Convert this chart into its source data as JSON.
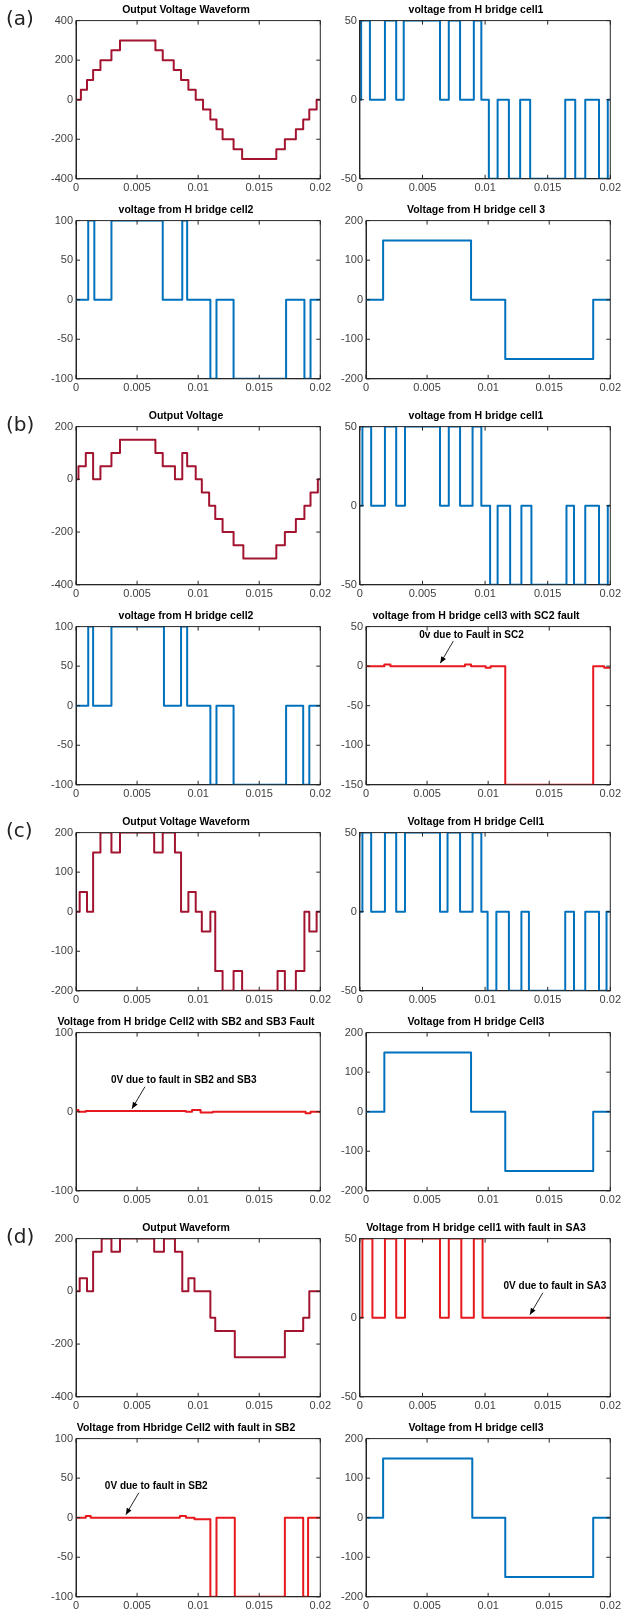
{
  "chart_data": [
    {
      "type": "step",
      "title": "Output Voltage Waveform",
      "annotations": [
        "(a)"
      ],
      "color": "#a2142f",
      "x": [
        0,
        0.0004,
        0.0009,
        0.0014,
        0.002,
        0.0029,
        0.0036,
        0.0065,
        0.0071,
        0.008,
        0.0086,
        0.0092,
        0.0098,
        0.0104,
        0.011,
        0.0115,
        0.012,
        0.0129,
        0.0136,
        0.0164,
        0.0171,
        0.018,
        0.0186,
        0.0191,
        0.0197,
        0.02
      ],
      "values": [
        0,
        50,
        100,
        150,
        200,
        250,
        300,
        250,
        200,
        150,
        100,
        50,
        0,
        -50,
        -100,
        -150,
        -200,
        -250,
        -300,
        -250,
        -200,
        -150,
        -100,
        -50,
        0,
        0
      ],
      "xlim": [
        0,
        0.02
      ],
      "xticks": [
        0,
        0.005,
        0.01,
        0.015,
        0.02
      ],
      "ylim": [
        -400,
        400
      ],
      "yticks": [
        -400,
        -200,
        0,
        200,
        400
      ]
    },
    {
      "type": "step",
      "title": "voltage from H bridge cell1",
      "color": "#0072bd",
      "x": [
        0,
        0.0001,
        0.0008,
        0.002,
        0.0029,
        0.0035,
        0.0064,
        0.0071,
        0.008,
        0.0091,
        0.0097,
        0.0103,
        0.011,
        0.0119,
        0.0128,
        0.0136,
        0.0164,
        0.0172,
        0.018,
        0.0191,
        0.0198,
        0.02
      ],
      "values": [
        0,
        50,
        0,
        50,
        0,
        50,
        0,
        50,
        0,
        50,
        0,
        -50,
        0,
        -50,
        0,
        -50,
        0,
        -50,
        0,
        -50,
        0,
        0
      ],
      "xlim": [
        0,
        0.02
      ],
      "xticks": [
        0,
        0.005,
        0.01,
        0.015,
        0.02
      ],
      "ylim": [
        -50,
        50
      ],
      "yticks": [
        -50,
        0,
        50
      ]
    },
    {
      "type": "step",
      "title": "voltage from H bridge cell2",
      "color": "#0072bd",
      "x": [
        0,
        0.001,
        0.0015,
        0.0029,
        0.0071,
        0.0087,
        0.0091,
        0.011,
        0.0115,
        0.0129,
        0.0172,
        0.0187,
        0.0192,
        0.02
      ],
      "values": [
        0,
        100,
        0,
        100,
        0,
        100,
        0,
        -100,
        0,
        -100,
        0,
        -100,
        0,
        0
      ],
      "xlim": [
        0,
        0.02
      ],
      "xticks": [
        0,
        0.005,
        0.01,
        0.015,
        0.02
      ],
      "ylim": [
        -100,
        100
      ],
      "yticks": [
        -100,
        -50,
        0,
        50,
        100
      ]
    },
    {
      "type": "step",
      "title": "Voltage from H bridge cell 3",
      "color": "#0072bd",
      "x": [
        0,
        0.0014,
        0.0086,
        0.0114,
        0.0186,
        0.02
      ],
      "values": [
        0,
        150,
        0,
        -150,
        0,
        0
      ],
      "xlim": [
        0,
        0.02
      ],
      "xticks": [
        0,
        0.005,
        0.01,
        0.015,
        0.02
      ],
      "ylim": [
        -200,
        200
      ],
      "yticks": [
        -200,
        -100,
        0,
        100,
        200
      ]
    },
    {
      "type": "step",
      "title": "Output Voltage",
      "annotations": [
        "(b)"
      ],
      "color": "#a2142f",
      "x": [
        0,
        0.0002,
        0.0008,
        0.0014,
        0.002,
        0.0029,
        0.0036,
        0.0065,
        0.0071,
        0.0081,
        0.0087,
        0.0091,
        0.0098,
        0.0103,
        0.0109,
        0.0114,
        0.012,
        0.0129,
        0.0137,
        0.0164,
        0.0171,
        0.018,
        0.0187,
        0.0192,
        0.0198,
        0.02
      ],
      "values": [
        0,
        50,
        100,
        0,
        50,
        100,
        150,
        100,
        50,
        0,
        100,
        50,
        0,
        -50,
        -100,
        -150,
        -200,
        -250,
        -300,
        -250,
        -200,
        -150,
        -100,
        -50,
        0,
        0
      ],
      "xlim": [
        0,
        0.02
      ],
      "xticks": [
        0,
        0.005,
        0.01,
        0.015,
        0.02
      ],
      "ylim": [
        -400,
        200
      ],
      "yticks": [
        -400,
        -200,
        0,
        200
      ]
    },
    {
      "type": "step",
      "title": "voltage from H bridge cell1",
      "color": "#0072bd",
      "x": [
        0,
        0.0002,
        0.0009,
        0.002,
        0.0029,
        0.0036,
        0.0064,
        0.0071,
        0.008,
        0.009,
        0.0097,
        0.0104,
        0.011,
        0.012,
        0.0129,
        0.0137,
        0.0165,
        0.0171,
        0.018,
        0.0191,
        0.0198,
        0.02
      ],
      "values": [
        0,
        50,
        0,
        50,
        0,
        50,
        0,
        50,
        0,
        50,
        0,
        -50,
        0,
        -50,
        0,
        -50,
        0,
        -50,
        0,
        -50,
        0,
        0
      ],
      "xlim": [
        0,
        0.02
      ],
      "xticks": [
        0,
        0.005,
        0.01,
        0.015,
        0.02
      ],
      "ylim": [
        -50,
        50
      ],
      "yticks": [
        -50,
        0,
        50
      ]
    },
    {
      "type": "step",
      "title": "voltage from H bridge cell2",
      "color": "#0072bd",
      "x": [
        0,
        0.001,
        0.0014,
        0.0029,
        0.0072,
        0.0086,
        0.0091,
        0.011,
        0.0115,
        0.0129,
        0.0172,
        0.0186,
        0.0191,
        0.02
      ],
      "values": [
        0,
        100,
        0,
        100,
        0,
        100,
        0,
        -100,
        0,
        -100,
        0,
        -100,
        0,
        0
      ],
      "xlim": [
        0,
        0.02
      ],
      "xticks": [
        0,
        0.005,
        0.01,
        0.015,
        0.02
      ],
      "ylim": [
        -100,
        100
      ],
      "yticks": [
        -100,
        -50,
        0,
        50,
        100
      ]
    },
    {
      "type": "step",
      "title": "voltage from H bridge cell3 with SC2 fault",
      "color": "#e8191d",
      "x": [
        0,
        0.0015,
        0.002,
        0.0081,
        0.0086,
        0.0098,
        0.0102,
        0.0114,
        0.0186,
        0.0195,
        0.02
      ],
      "values": [
        0,
        2,
        0,
        2,
        0,
        -2,
        0,
        -150,
        0,
        -2,
        -2
      ],
      "xlim": [
        0,
        0.02
      ],
      "xticks": [
        0,
        0.005,
        0.01,
        0.015,
        0.02
      ],
      "ylim": [
        -150,
        50
      ],
      "yticks": [
        -150,
        -100,
        -50,
        0,
        50
      ],
      "annotations": [
        {
          "text": "0v due to Fault in SC2",
          "x": 0.006,
          "y": 0
        }
      ]
    },
    {
      "type": "step",
      "title": "Output Voltage Waveform",
      "annotations": [
        "(c)"
      ],
      "color": "#a2142f",
      "x": [
        0,
        0.0003,
        0.0009,
        0.0014,
        0.002,
        0.0029,
        0.0036,
        0.0064,
        0.0071,
        0.0081,
        0.0086,
        0.0092,
        0.0098,
        0.0103,
        0.011,
        0.0114,
        0.012,
        0.0129,
        0.0136,
        0.0165,
        0.0171,
        0.018,
        0.0187,
        0.0191,
        0.0197,
        0.02
      ],
      "values": [
        0,
        50,
        0,
        150,
        200,
        150,
        200,
        150,
        200,
        150,
        0,
        50,
        0,
        -50,
        0,
        -150,
        -200,
        -150,
        -200,
        -150,
        -200,
        -150,
        0,
        -50,
        0,
        0
      ],
      "xlim": [
        0,
        0.02
      ],
      "xticks": [
        0,
        0.005,
        0.01,
        0.015,
        0.02
      ],
      "ylim": [
        -200,
        200
      ],
      "yticks": [
        -200,
        -100,
        0,
        100,
        200
      ]
    },
    {
      "type": "step",
      "title": "Voltage from H bridge Cell1",
      "color": "#0072bd",
      "x": [
        0,
        0.0002,
        0.0009,
        0.002,
        0.0029,
        0.0036,
        0.0064,
        0.007,
        0.008,
        0.009,
        0.0097,
        0.0102,
        0.0109,
        0.0119,
        0.0129,
        0.0135,
        0.0164,
        0.0171,
        0.018,
        0.0191,
        0.0197,
        0.02
      ],
      "values": [
        0,
        50,
        0,
        50,
        0,
        50,
        0,
        50,
        0,
        50,
        0,
        -50,
        0,
        -50,
        0,
        -50,
        0,
        -50,
        0,
        -50,
        0,
        0
      ],
      "xlim": [
        0,
        0.02
      ],
      "xticks": [
        0,
        0.005,
        0.01,
        0.015,
        0.02
      ],
      "ylim": [
        -50,
        50
      ],
      "yticks": [
        -50,
        0,
        50
      ]
    },
    {
      "type": "step",
      "title": "Voltage from H bridge Cell2 with SB2 and SB3 Fault",
      "color": "#e8191d",
      "x": [
        0,
        0.0002,
        0.0008,
        0.009,
        0.0095,
        0.0102,
        0.0112,
        0.0188,
        0.0192,
        0.02
      ],
      "values": [
        2,
        0,
        1,
        0,
        2,
        -1,
        0,
        -2,
        0,
        -2
      ],
      "xlim": [
        0,
        0.02
      ],
      "xticks": [
        0,
        0.005,
        0.01,
        0.015,
        0.02
      ],
      "ylim": [
        -100,
        100
      ],
      "yticks": [
        -100,
        0,
        100
      ],
      "annotations": [
        {
          "text": "0V due to fault in SB2 and SB3",
          "x": 0.0045,
          "y": 0
        }
      ]
    },
    {
      "type": "step",
      "title": "Voltage from H bridge Cell3",
      "color": "#0072bd",
      "x": [
        0,
        0.0015,
        0.0086,
        0.0114,
        0.0186,
        0.02
      ],
      "values": [
        0,
        150,
        0,
        -150,
        0,
        0
      ],
      "xlim": [
        0,
        0.02
      ],
      "xticks": [
        0,
        0.005,
        0.01,
        0.015,
        0.02
      ],
      "ylim": [
        -200,
        200
      ],
      "yticks": [
        -200,
        -100,
        0,
        100,
        200
      ]
    },
    {
      "type": "step",
      "title": "Output Waveform",
      "annotations": [
        "(d)"
      ],
      "color": "#a2142f",
      "x": [
        0,
        0.0003,
        0.0009,
        0.0014,
        0.0021,
        0.0029,
        0.0036,
        0.0064,
        0.0072,
        0.0081,
        0.0087,
        0.0092,
        0.0097,
        0.011,
        0.0114,
        0.013,
        0.0171,
        0.0186,
        0.0191,
        0.02
      ],
      "values": [
        0,
        50,
        0,
        150,
        200,
        150,
        200,
        150,
        200,
        150,
        0,
        50,
        0,
        -100,
        -150,
        -250,
        -150,
        -100,
        0,
        0
      ],
      "xlim": [
        0,
        0.02
      ],
      "xticks": [
        0,
        0.005,
        0.01,
        0.015,
        0.02
      ],
      "ylim": [
        -400,
        200
      ],
      "yticks": [
        -400,
        -200,
        0,
        200
      ]
    },
    {
      "type": "step",
      "title": "Voltage from H bridge cell1 with fault in SA3",
      "color": "#e8191d",
      "x": [
        0,
        0.0002,
        0.001,
        0.002,
        0.0029,
        0.0036,
        0.0064,
        0.0071,
        0.0081,
        0.0091,
        0.0098,
        0.02
      ],
      "values": [
        0,
        50,
        0,
        50,
        0,
        50,
        0,
        50,
        0,
        50,
        0,
        0
      ],
      "xlim": [
        0,
        0.02
      ],
      "xticks": [
        0,
        0.005,
        0.01,
        0.015,
        0.02
      ],
      "ylim": [
        -50,
        50
      ],
      "yticks": [
        -50,
        0,
        50
      ],
      "annotations": [
        {
          "text": "0V due to fault in SA3",
          "x": 0.0135,
          "y": 0
        }
      ]
    },
    {
      "type": "step",
      "title": "Voltage from Hbridge Cell2 with fault in SB2",
      "color": "#e8191d",
      "x": [
        0,
        0.0008,
        0.0012,
        0.0085,
        0.009,
        0.0097,
        0.011,
        0.0115,
        0.013,
        0.0171,
        0.0186,
        0.019,
        0.02
      ],
      "values": [
        0,
        2,
        0,
        2,
        0,
        -2,
        -100,
        0,
        -100,
        0,
        -100,
        0,
        0
      ],
      "xlim": [
        0,
        0.02
      ],
      "xticks": [
        0,
        0.005,
        0.01,
        0.015,
        0.02
      ],
      "ylim": [
        -100,
        100
      ],
      "yticks": [
        -100,
        -50,
        0,
        50,
        100
      ],
      "annotations": [
        {
          "text": "0V due to fault in SB2",
          "x": 0.004,
          "y": 0
        }
      ]
    },
    {
      "type": "step",
      "title": "Voltage from H bridge cell3",
      "color": "#0072bd",
      "x": [
        0,
        0.0014,
        0.0087,
        0.0114,
        0.0186,
        0.02
      ],
      "values": [
        0,
        150,
        0,
        -150,
        0,
        0
      ],
      "xlim": [
        0,
        0.02
      ],
      "xticks": [
        0,
        0.005,
        0.01,
        0.015,
        0.02
      ],
      "ylim": [
        -200,
        200
      ],
      "yticks": [
        -200,
        -100,
        0,
        100,
        200
      ]
    }
  ]
}
